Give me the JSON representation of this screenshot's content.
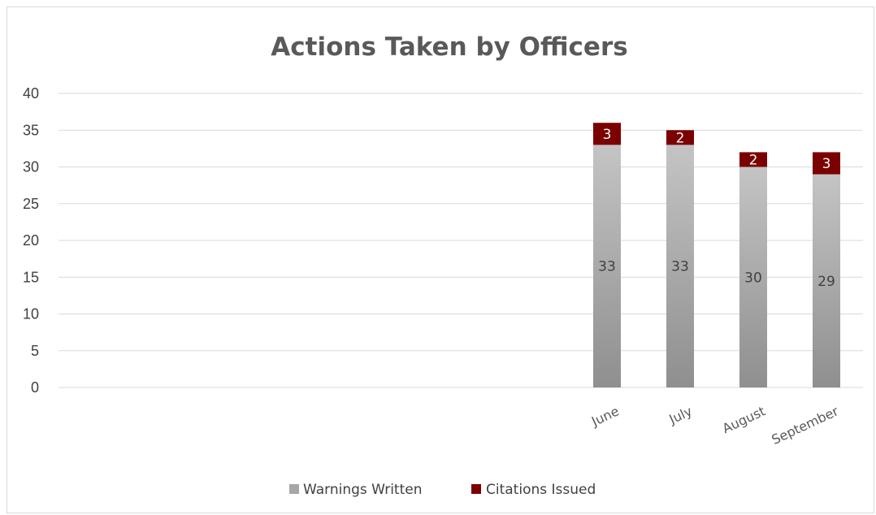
{
  "chart_data": {
    "type": "bar",
    "stacked": true,
    "title": "Actions Taken by Officers",
    "categories": [
      "",
      "",
      "",
      "",
      "",
      "",
      "",
      "June",
      "July",
      "August",
      "September"
    ],
    "series": [
      {
        "name": "Warnings Written",
        "values": [
          null,
          null,
          null,
          null,
          null,
          null,
          null,
          33,
          33,
          30,
          29
        ],
        "color": "#a6a6a6"
      },
      {
        "name": "Citations Issued",
        "values": [
          null,
          null,
          null,
          null,
          null,
          null,
          null,
          3,
          2,
          2,
          3
        ],
        "color": "#7b0000"
      }
    ],
    "ylim": [
      0,
      40
    ],
    "yticks": [
      0,
      5,
      10,
      15,
      20,
      25,
      30,
      35,
      40
    ],
    "grid": true,
    "legend": "bottom"
  }
}
